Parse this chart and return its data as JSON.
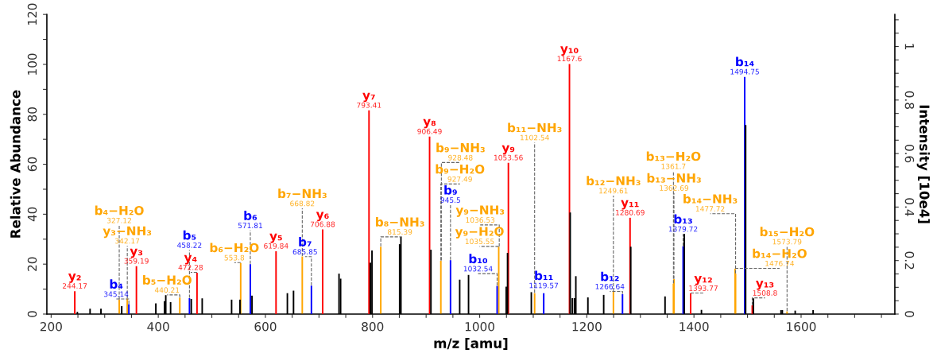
{
  "chart_data": {
    "type": "bar",
    "xlabel": "m/z [amu]",
    "ylabel": "Relative Abundance",
    "y2label": "Intensity [10e4]",
    "xlim": [
      192,
      1775
    ],
    "xticks": [
      200,
      {
        "value": 250,
        "label": null
      },
      {
        "value": 300,
        "label": null
      },
      {
        "value": 350,
        "label": null
      },
      400,
      {
        "value": 450,
        "label": null
      },
      {
        "value": 500,
        "label": null
      },
      {
        "value": 550,
        "label": null
      },
      600,
      {
        "value": 650,
        "label": null
      },
      {
        "value": 700,
        "label": null
      },
      {
        "value": 750,
        "label": null
      },
      800,
      {
        "value": 850,
        "label": null
      },
      {
        "value": 900,
        "label": null
      },
      {
        "value": 950,
        "label": null
      },
      1000,
      {
        "value": 1050,
        "label": null
      },
      {
        "value": 1100,
        "label": null
      },
      {
        "value": 1150,
        "label": null
      },
      1200,
      {
        "value": 1250,
        "label": null
      },
      {
        "value": 1300,
        "label": null
      },
      {
        "value": 1350,
        "label": null
      },
      1400,
      {
        "value": 1450,
        "label": null
      },
      {
        "value": 1500,
        "label": null
      },
      {
        "value": 1550,
        "label": null
      },
      1600,
      {
        "value": 1650,
        "label": null
      },
      {
        "value": 1700,
        "label": null
      },
      {
        "value": 1750,
        "label": null
      }
    ],
    "ylim": [
      0,
      120
    ],
    "yticks": [
      0,
      {
        "value": 10,
        "label": null
      },
      20,
      {
        "value": 30,
        "label": null
      },
      40,
      {
        "value": 50,
        "label": null
      },
      60,
      {
        "value": 70,
        "label": null
      },
      80,
      {
        "value": 90,
        "label": null
      },
      100,
      {
        "value": 110,
        "label": null
      },
      120
    ],
    "y2lim": [
      0,
      1.12
    ],
    "y2ticks": [
      0,
      {
        "value": 0.05,
        "label": null
      },
      {
        "value": 0.1,
        "label": null
      },
      {
        "value": 0.15,
        "label": null
      },
      0.2,
      {
        "value": 0.25,
        "label": null
      },
      {
        "value": 0.3,
        "label": null
      },
      {
        "value": 0.35,
        "label": null
      },
      0.4,
      {
        "value": 0.45,
        "label": null
      },
      {
        "value": 0.5,
        "label": null
      },
      {
        "value": 0.55,
        "label": null
      },
      0.6,
      {
        "value": 0.65,
        "label": null
      },
      {
        "value": 0.7,
        "label": null
      },
      {
        "value": 0.75,
        "label": null
      },
      0.8,
      {
        "value": 0.85,
        "label": null
      },
      {
        "value": 0.9,
        "label": null
      },
      {
        "value": 0.95,
        "label": null
      },
      1,
      {
        "value": 1.05,
        "label": null
      },
      {
        "value": 1.1,
        "label": null
      }
    ],
    "grid": false,
    "series": [
      {
        "color": "#ffa500",
        "x": [
          327.12,
          342.17,
          440.21,
          553.8,
          668.82,
          815.39,
          927.49,
          928.48,
          1035.55,
          1036.53,
          1102.54,
          1249.61,
          1361.7,
          1362.69,
          1476.74,
          1477.72,
          1573.79
        ],
        "values": [
          5.6,
          6,
          6.4,
          20.3,
          22.9,
          26.8,
          21.2,
          null,
          26.8,
          null,
          8.2,
          8.9,
          12,
          13.8,
          18,
          16,
          0.9
        ]
      },
      {
        "color": "#0000ff",
        "x": [
          345.14,
          458.22,
          571.81,
          685.85,
          945.5,
          1032.54,
          1119.57,
          1266.64,
          1379.72,
          1494.75
        ],
        "values": [
          3.8,
          6.2,
          19.8,
          11.2,
          21.4,
          11.1,
          8.2,
          7.8,
          27,
          94.8
        ]
      },
      {
        "color": "#ff0000",
        "x": [
          244.17,
          359.19,
          472.28,
          619.84,
          706.88,
          793.41,
          906.49,
          1053.56,
          1167.6,
          1280.69,
          1393.77,
          1508.8
        ],
        "values": [
          9,
          19,
          16.4,
          25,
          33.7,
          81.4,
          70.9,
          60.4,
          100,
          38.4,
          8.1,
          3.3
        ]
      },
      {
        "color": "#000000",
        "x": [
          249,
          272.7,
          293,
          331.8,
          395.5,
          411.6,
          414,
          423,
          461.6,
          482,
          536.9,
          552.5,
          575,
          641,
          652.5,
          737.4,
          740.4,
          796,
          799,
          850.6,
          853,
          909,
          962.7,
          979.2,
          1049.5,
          1052,
          1096.4,
          1169,
          1173,
          1177,
          1179.5,
          1202,
          1231.5,
          1282,
          1346,
          1382,
          1414,
          1496.5,
          1511,
          1562.5,
          1565,
          1589,
          1622.5
        ],
        "values": [
          0.7,
          2,
          2,
          3,
          4.1,
          5,
          7.4,
          4.6,
          5.9,
          6.1,
          5.6,
          5.6,
          7.2,
          8.2,
          9.2,
          16,
          14,
          20.4,
          25.3,
          27.8,
          30.9,
          25.6,
          13.6,
          15.5,
          10.8,
          24.3,
          8.6,
          40.5,
          6.2,
          6.2,
          15,
          6.5,
          7.5,
          26.8,
          6.9,
          31.9,
          1.5,
          75.5,
          6.1,
          1.4,
          1.4,
          1.2,
          1.4
        ]
      }
    ],
    "annotations": [
      {
        "text": "y₂",
        "x": 244.17,
        "y": 9
      },
      {
        "text": "244.17",
        "x": 244.17,
        "y": 9
      },
      {
        "text": "b₄−H₂O",
        "x": 327.12,
        "y": 5.6
      },
      {
        "text": "327.12",
        "x": 327.12,
        "y": 5.6
      },
      {
        "text": "y₃−NH₃",
        "x": 342.17,
        "y": 6
      },
      {
        "text": "342.17",
        "x": 342.17,
        "y": 6
      },
      {
        "text": "b₄",
        "x": 345.14,
        "y": 3.8
      },
      {
        "text": "345.14",
        "x": 345.14,
        "y": 3.8
      },
      {
        "text": "y₃",
        "x": 359.19,
        "y": 19
      },
      {
        "text": "359.19",
        "x": 359.19,
        "y": 19
      },
      {
        "text": "b₅−H₂O",
        "x": 440.21,
        "y": 6.4
      },
      {
        "text": "440.21",
        "x": 440.21,
        "y": 6.4
      },
      {
        "text": "b₅",
        "x": 458.22,
        "y": 6.2
      },
      {
        "text": "458.22",
        "x": 458.22,
        "y": 6.2
      },
      {
        "text": "y₄",
        "x": 472.28,
        "y": 16.4
      },
      {
        "text": "472.28",
        "x": 472.28,
        "y": 16.4
      },
      {
        "text": "b₆−H₂O",
        "x": 553.8,
        "y": 20.3
      },
      {
        "text": "553.8",
        "x": 553.8,
        "y": 20.3
      },
      {
        "text": "b₆",
        "x": 571.81,
        "y": 19.8
      },
      {
        "text": "571.81",
        "x": 571.81,
        "y": 19.8
      },
      {
        "text": "y₅",
        "x": 619.84,
        "y": 25
      },
      {
        "text": "619.84",
        "x": 619.84,
        "y": 25
      },
      {
        "text": "b₇−NH₃",
        "x": 668.82,
        "y": 22.9
      },
      {
        "text": "668.82",
        "x": 668.82,
        "y": 22.9
      },
      {
        "text": "b₇",
        "x": 685.85,
        "y": 11.2
      },
      {
        "text": "685.85",
        "x": 685.85,
        "y": 11.2
      },
      {
        "text": "y₆",
        "x": 706.88,
        "y": 33.7
      },
      {
        "text": "706.88",
        "x": 706.88,
        "y": 33.7
      },
      {
        "text": "y₇",
        "x": 793.41,
        "y": 81.4
      },
      {
        "text": "793.41",
        "x": 793.41,
        "y": 81.4
      },
      {
        "text": "b₈−NH₃",
        "x": 815.39,
        "y": 26.8
      },
      {
        "text": "815.39",
        "x": 815.39,
        "y": 26.8
      },
      {
        "text": "y₈",
        "x": 906.49,
        "y": 70.9
      },
      {
        "text": "906.49",
        "x": 906.49,
        "y": 70.9
      },
      {
        "text": "b₉−H₂O",
        "x": 927.49,
        "y": 21.2
      },
      {
        "text": "927.49",
        "x": 927.49,
        "y": 21.2
      },
      {
        "text": "b₉−NH₃",
        "x": 928.48,
        "y": 21.2
      },
      {
        "text": "928.48",
        "x": 928.48,
        "y": 21.2
      },
      {
        "text": "b₉",
        "x": 945.5,
        "y": 21.4
      },
      {
        "text": "945.5",
        "x": 945.5,
        "y": 21.4
      },
      {
        "text": "b₁₀",
        "x": 1032.54,
        "y": 11.1
      },
      {
        "text": "1032.54",
        "x": 1032.54,
        "y": 11.1
      },
      {
        "text": "y₉−H₂O",
        "x": 1035.55,
        "y": 26.8
      },
      {
        "text": "1035.55",
        "x": 1035.55,
        "y": 26.8
      },
      {
        "text": "y₉−NH₃",
        "x": 1036.53,
        "y": 26.8
      },
      {
        "text": "1036.53",
        "x": 1036.53,
        "y": 26.8
      },
      {
        "text": "y₉",
        "x": 1053.56,
        "y": 60.4
      },
      {
        "text": "1053.56",
        "x": 1053.56,
        "y": 60.4
      },
      {
        "text": "b₁₁−NH₃",
        "x": 1102.54,
        "y": 8.2
      },
      {
        "text": "1102.54",
        "x": 1102.54,
        "y": 8.2
      },
      {
        "text": "b₁₁",
        "x": 1119.57,
        "y": 8.2
      },
      {
        "text": "1119.57",
        "x": 1119.57,
        "y": 8.2
      },
      {
        "text": "y₁₀",
        "x": 1167.6,
        "y": 100
      },
      {
        "text": "1167.6",
        "x": 1167.6,
        "y": 100
      },
      {
        "text": "b₁₂−NH₃",
        "x": 1249.61,
        "y": 8.9
      },
      {
        "text": "1249.61",
        "x": 1249.61,
        "y": 8.9
      },
      {
        "text": "b₁₂",
        "x": 1266.64,
        "y": 7.8
      },
      {
        "text": "1266.64",
        "x": 1266.64,
        "y": 7.8
      },
      {
        "text": "y₁₁",
        "x": 1280.69,
        "y": 38.4
      },
      {
        "text": "1280.69",
        "x": 1280.69,
        "y": 38.4
      },
      {
        "text": "b₁₃−H₂O",
        "x": 1361.7,
        "y": 12
      },
      {
        "text": "1361.7",
        "x": 1361.7,
        "y": 12
      },
      {
        "text": "b₁₃−NH₃",
        "x": 1362.69,
        "y": 13.8
      },
      {
        "text": "1362.69",
        "x": 1362.69,
        "y": 13.8
      },
      {
        "text": "b₁₃",
        "x": 1379.72,
        "y": 27
      },
      {
        "text": "1379.72",
        "x": 1379.72,
        "y": 27
      },
      {
        "text": "y₁₂",
        "x": 1393.77,
        "y": 8.1
      },
      {
        "text": "1393.77",
        "x": 1393.77,
        "y": 8.1
      },
      {
        "text": "b₁₄−H₂O",
        "x": 1476.74,
        "y": 18
      },
      {
        "text": "1476.74",
        "x": 1476.74,
        "y": 18
      },
      {
        "text": "b₁₄−NH₃",
        "x": 1477.72,
        "y": 16
      },
      {
        "text": "1477.72",
        "x": 1477.72,
        "y": 16
      },
      {
        "text": "b₁₄",
        "x": 1494.75,
        "y": 94.8
      },
      {
        "text": "1494.75",
        "x": 1494.75,
        "y": 94.8
      },
      {
        "text": "y₁₃",
        "x": 1508.8,
        "y": 3.3
      },
      {
        "text": "1508.8",
        "x": 1508.8,
        "y": 3.3
      },
      {
        "text": "b₁₅−H₂O",
        "x": 1573.79,
        "y": 0.9
      },
      {
        "text": "1573.79",
        "x": 1573.79,
        "y": 0.9
      }
    ]
  }
}
